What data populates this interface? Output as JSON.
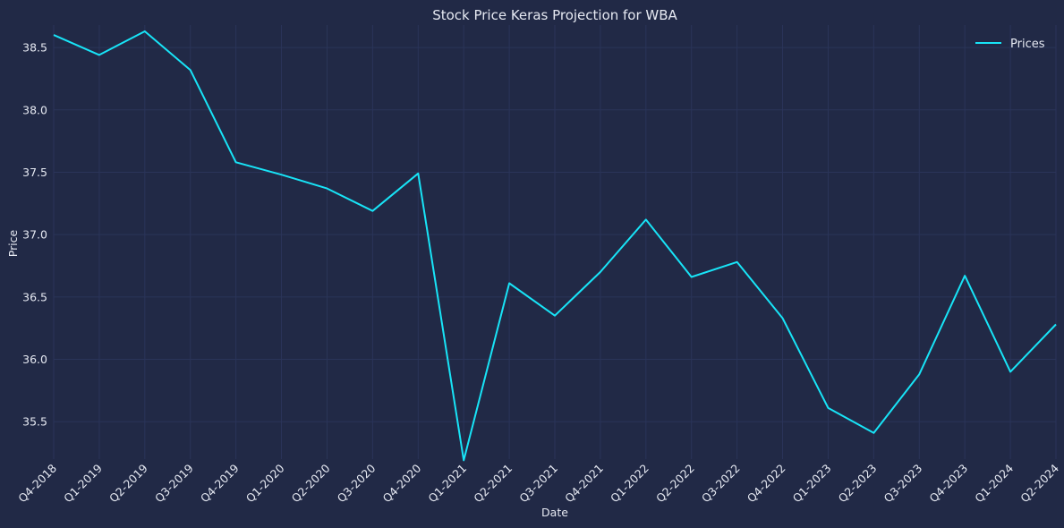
{
  "chart_data": {
    "type": "line",
    "title": "Stock Price Keras Projection for WBA",
    "xlabel": "Date",
    "ylabel": "Price",
    "categories": [
      "Q4-2018",
      "Q1-2019",
      "Q2-2019",
      "Q3-2019",
      "Q4-2019",
      "Q1-2020",
      "Q2-2020",
      "Q3-2020",
      "Q4-2020",
      "Q1-2021",
      "Q2-2021",
      "Q3-2021",
      "Q4-2021",
      "Q1-2022",
      "Q2-2022",
      "Q3-2022",
      "Q4-2022",
      "Q1-2023",
      "Q2-2023",
      "Q3-2023",
      "Q4-2023",
      "Q1-2024",
      "Q2-2024"
    ],
    "series": [
      {
        "name": "Prices",
        "color": "#18e4f7",
        "values": [
          38.6,
          38.44,
          38.63,
          38.32,
          37.58,
          37.48,
          37.37,
          37.19,
          37.49,
          35.19,
          36.61,
          36.35,
          36.7,
          37.12,
          36.66,
          36.78,
          36.33,
          35.61,
          35.41,
          35.88,
          36.67,
          35.9,
          36.28
        ]
      }
    ],
    "ylim": [
      35.2,
      38.68
    ],
    "yticks": [
      "35.5",
      "36.0",
      "36.5",
      "37.0",
      "37.5",
      "38.0",
      "38.5"
    ],
    "grid": true,
    "legend_position": "top-right",
    "background": "#212946"
  }
}
